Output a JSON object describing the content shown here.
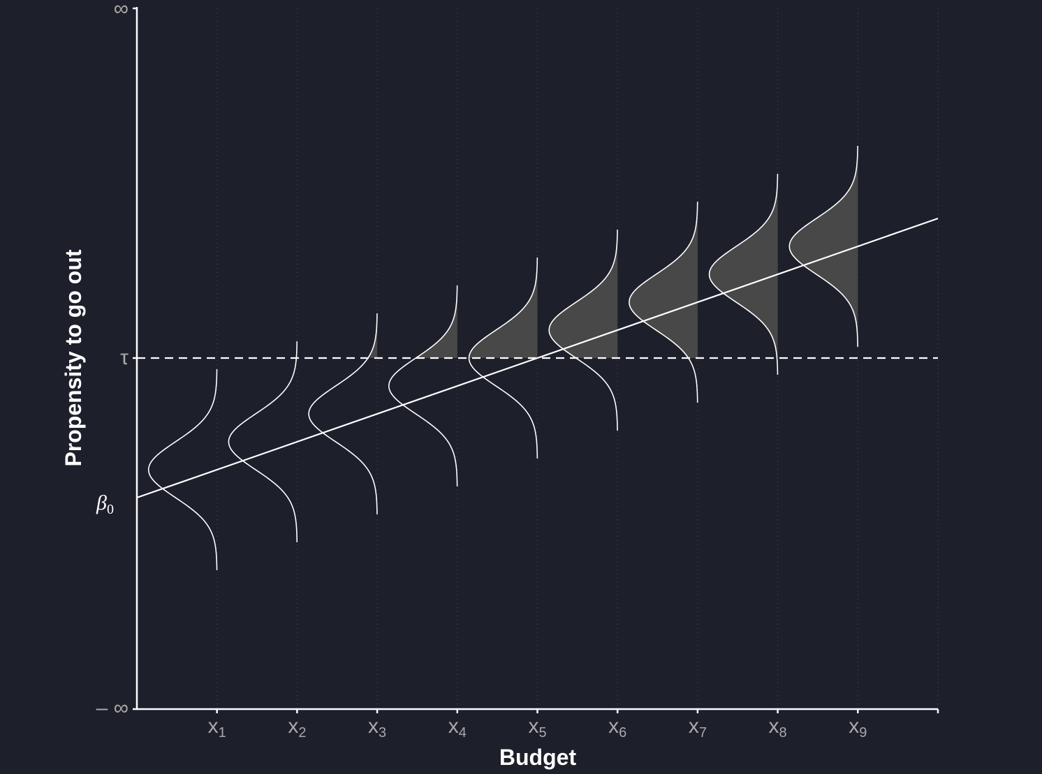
{
  "chart_data": {
    "type": "diagram",
    "xlabel": "Budget",
    "ylabel": "Propensity to go out",
    "x_ticks": [
      {
        "base": "x",
        "sub": "1"
      },
      {
        "base": "x",
        "sub": "2"
      },
      {
        "base": "x",
        "sub": "3"
      },
      {
        "base": "x",
        "sub": "4"
      },
      {
        "base": "x",
        "sub": "5"
      },
      {
        "base": "x",
        "sub": "6"
      },
      {
        "base": "x",
        "sub": "7"
      },
      {
        "base": "x",
        "sub": "8"
      },
      {
        "base": "x",
        "sub": "9"
      }
    ],
    "y_ticks": {
      "top": "∞",
      "threshold": "τ",
      "bottom": "– ∞"
    },
    "intercept_label": {
      "base": "β",
      "sub": "0"
    },
    "line": {
      "intercept": 0,
      "slope": 0.1
    },
    "threshold": 0.5,
    "distribution_sd": 0.1,
    "distributions_at_x": [
      1,
      2,
      3,
      4,
      5,
      6,
      7,
      8,
      9
    ],
    "highlight_region": {
      "x": 4,
      "between": "threshold and line"
    },
    "colors": {
      "background": "#1d1f2a",
      "axis": "#ffffff",
      "curve": "#ffffff",
      "fill": "#484848",
      "highlight": "#000000",
      "tick_text": "#a9a9a9",
      "grid": "#4a4c58"
    }
  }
}
